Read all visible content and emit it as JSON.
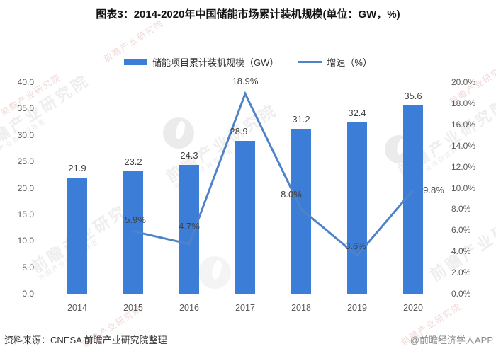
{
  "title": "图表3：2014-2020年中国储能市场累计装机规模(单位：GW，%)",
  "legend": [
    {
      "label": "储能项目累计装机规模（GW）",
      "swatch": "bar-swatch"
    },
    {
      "label": "增速（%）",
      "swatch": "line-swatch"
    }
  ],
  "chart_data": {
    "type": "bar",
    "subtype": "bar+line combo, dual axis",
    "title": "图表3：2014-2020年中国储能市场累计装机规模(单位：GW，%)",
    "categories": [
      "2014",
      "2015",
      "2016",
      "2017",
      "2018",
      "2019",
      "2020"
    ],
    "series": [
      {
        "name": "储能项目累计装机规模（GW）",
        "type": "bar",
        "axis": "left",
        "values": [
          21.9,
          23.2,
          24.3,
          28.9,
          31.2,
          32.4,
          35.6
        ],
        "labels": [
          "21.9",
          "23.2",
          "24.3",
          "28.9",
          "31.2",
          "32.4",
          "35.6"
        ],
        "color": "#3C7DD7"
      },
      {
        "name": "增速（%）",
        "type": "line",
        "axis": "right",
        "values": [
          null,
          5.9,
          4.7,
          18.9,
          8.0,
          3.6,
          9.8
        ],
        "labels": [
          null,
          "5.9%",
          "4.7%",
          "18.9%",
          "8.0%",
          "3.6%",
          "9.8%"
        ],
        "color": "#4F82C8"
      }
    ],
    "left_axis": {
      "min": 0,
      "max": 40,
      "step": 5,
      "tick_labels": [
        "0.0",
        "5.0",
        "10.0",
        "15.0",
        "20.0",
        "25.0",
        "30.0",
        "35.0",
        "40.0"
      ]
    },
    "right_axis": {
      "min": 0,
      "max": 20,
      "step": 2,
      "tick_labels": [
        "0.0%",
        "2.0%",
        "4.0%",
        "6.0%",
        "8.0%",
        "10.0%",
        "12.0%",
        "14.0%",
        "16.0%",
        "18.0%",
        "20.0%"
      ]
    },
    "gridlines": false,
    "legend_position": "top"
  },
  "footer": {
    "source": "资料来源：CNESA 前瞻产业研究院整理",
    "copyright": "@前瞻经济学人APP"
  },
  "watermark": {
    "text": "前瞻产业研究院",
    "subtext": "中国产业咨询领导者"
  },
  "colors": {
    "bar": "#3C7DD7",
    "line": "#4F82C8",
    "axis_text": "#595959",
    "label_text": "#404040",
    "axis_line": "#d2d2d2"
  }
}
